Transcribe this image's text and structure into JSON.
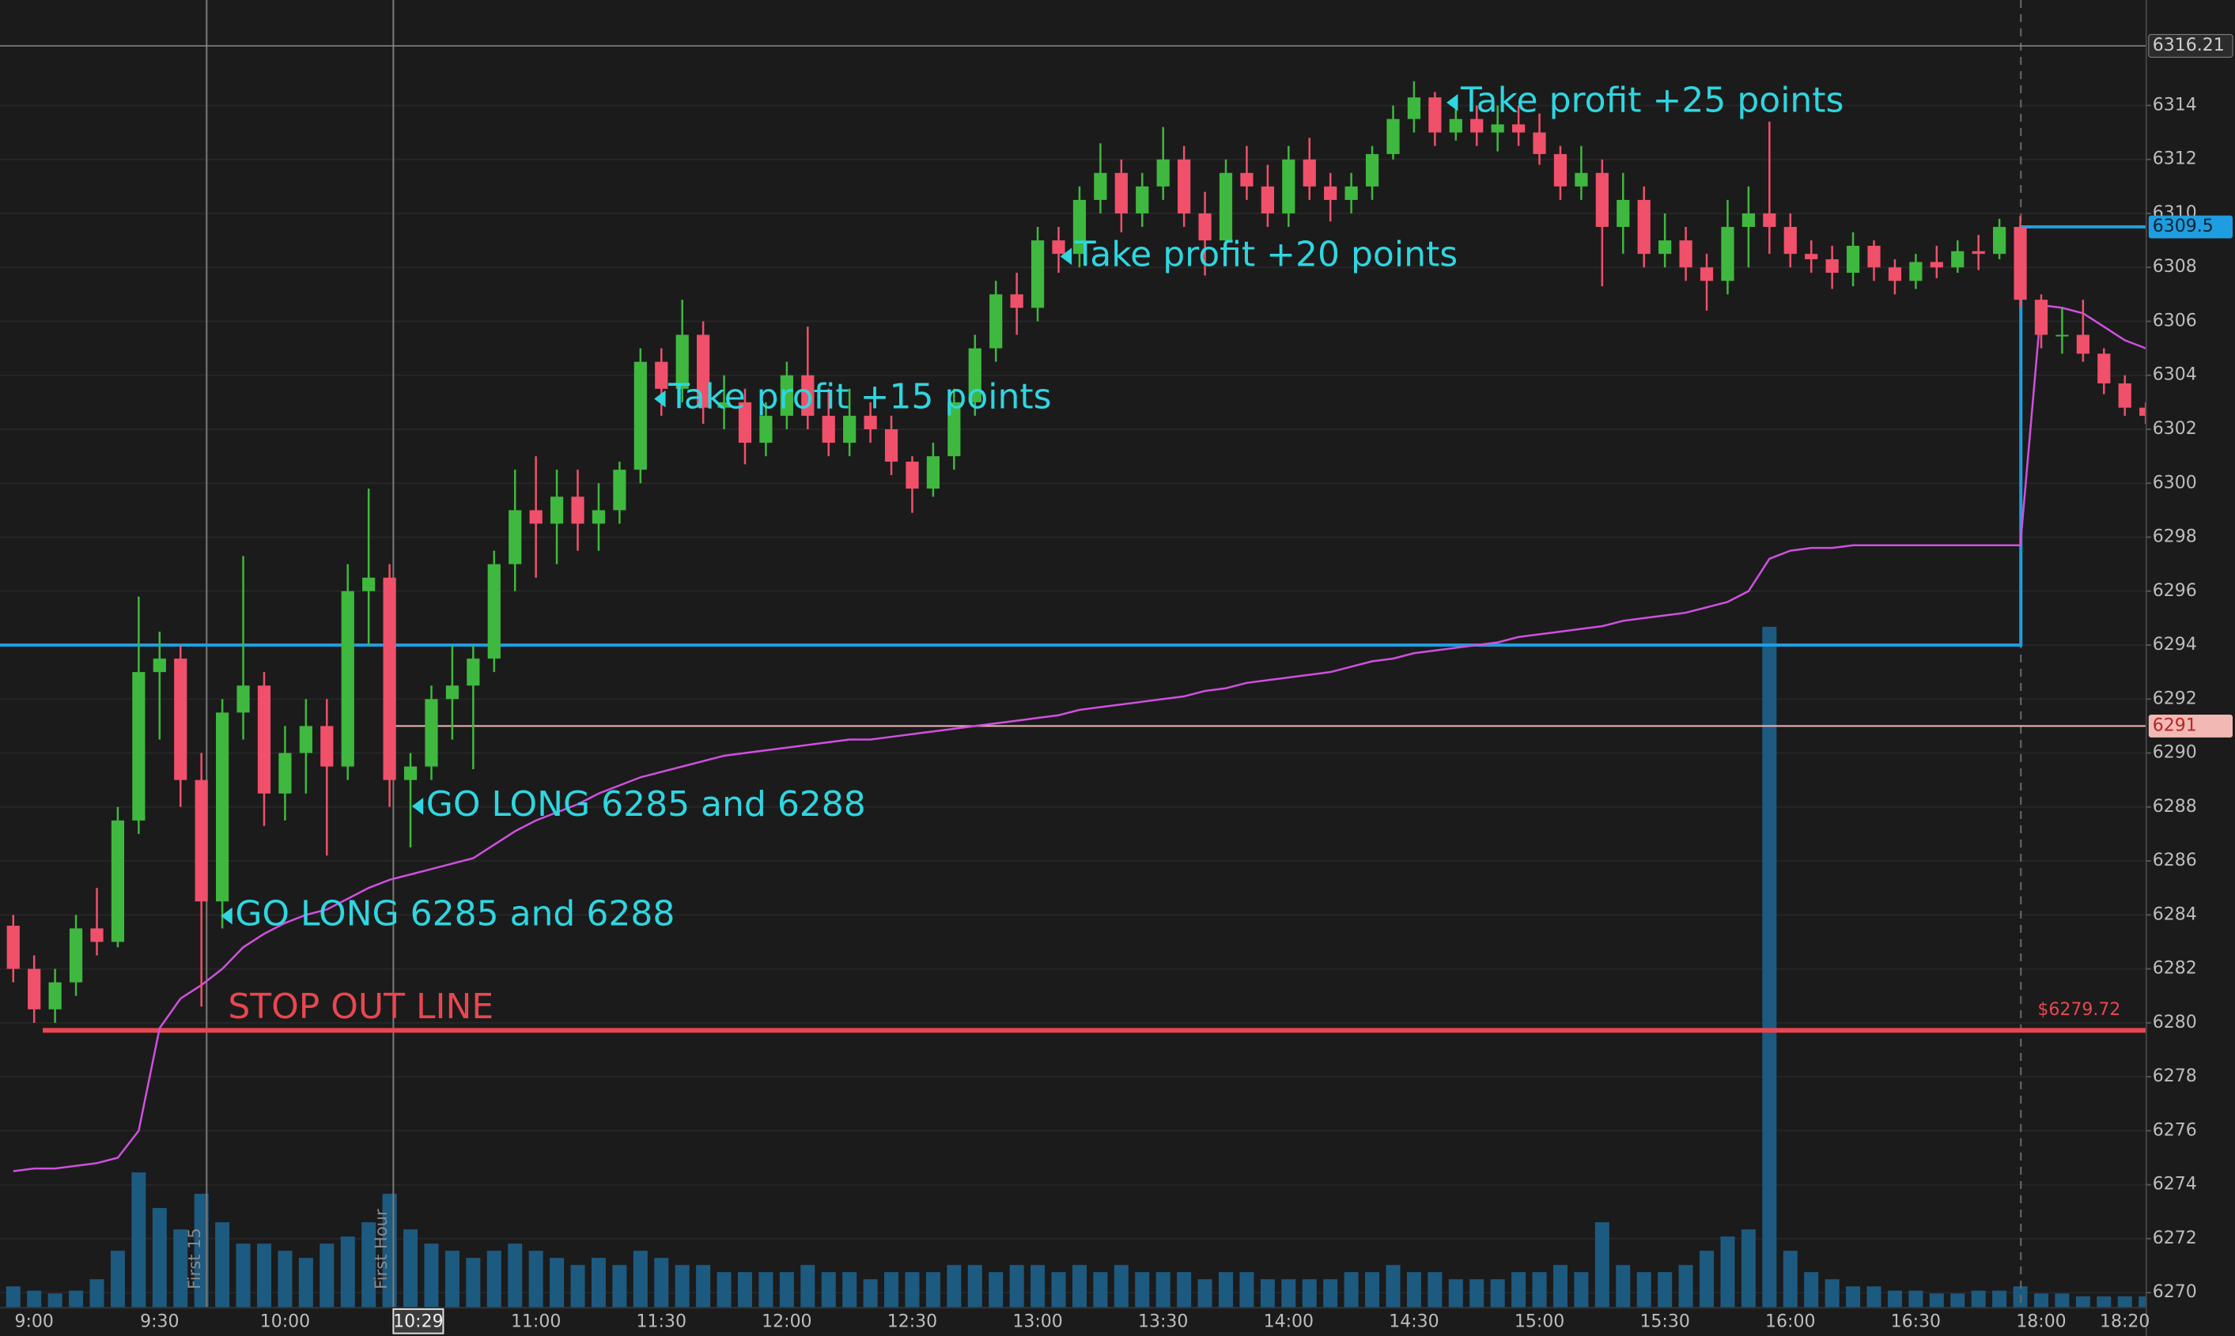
{
  "chart_data": {
    "type": "candlestick",
    "categories": [
      null,
      "9:00",
      null,
      null,
      null,
      null,
      null,
      "9:30",
      null,
      null,
      null,
      null,
      null,
      "10:00",
      null,
      null,
      null,
      null,
      null,
      null,
      null,
      null,
      null,
      null,
      null,
      "11:00",
      null,
      null,
      null,
      null,
      null,
      "11:30",
      null,
      null,
      null,
      null,
      null,
      "12:00",
      null,
      null,
      null,
      null,
      null,
      "12:30",
      null,
      null,
      null,
      null,
      null,
      "13:00",
      null,
      null,
      null,
      null,
      null,
      "13:30",
      null,
      null,
      null,
      null,
      null,
      "14:00",
      null,
      null,
      null,
      null,
      null,
      "14:30",
      null,
      null,
      null,
      null,
      null,
      "15:00",
      null,
      null,
      null,
      null,
      null,
      "15:30",
      null,
      null,
      null,
      null,
      null,
      "16:00",
      null,
      null,
      null,
      null,
      null,
      "16:30",
      null,
      null,
      null,
      null,
      null,
      "18:00",
      null,
      null,
      null,
      "18:20",
      null
    ],
    "ohlc": [
      [
        6283.6,
        6284,
        6281.5,
        6282
      ],
      [
        6282,
        6282.5,
        6280,
        6280.5
      ],
      [
        6280.5,
        6282,
        6280,
        6281.5
      ],
      [
        6281.5,
        6284,
        6281,
        6283.5
      ],
      [
        6283.5,
        6285,
        6282.5,
        6283
      ],
      [
        6283,
        6288,
        6282.8,
        6287.5
      ],
      [
        6287.5,
        6295.8,
        6287,
        6293
      ],
      [
        6293,
        6294.5,
        6290.5,
        6293.5
      ],
      [
        6293.5,
        6294,
        6288,
        6289
      ],
      [
        6289,
        6290,
        6280.6,
        6284.5
      ],
      [
        6284.5,
        6292,
        6283.5,
        6291.5
      ],
      [
        6291.5,
        6297.3,
        6290.5,
        6292.5
      ],
      [
        6292.5,
        6293,
        6287.3,
        6288.5
      ],
      [
        6288.5,
        6291,
        6287.5,
        6290
      ],
      [
        6290,
        6292,
        6288.5,
        6291
      ],
      [
        6291,
        6292,
        6286.2,
        6289.5
      ],
      [
        6289.5,
        6297,
        6289,
        6296
      ],
      [
        6296,
        6299.8,
        6294,
        6296.5
      ],
      [
        6296.5,
        6297,
        6288,
        6289
      ],
      [
        6289,
        6290,
        6286.5,
        6289.5
      ],
      [
        6289.5,
        6292.5,
        6289,
        6292
      ],
      [
        6292,
        6294,
        6290.5,
        6292.5
      ],
      [
        6292.5,
        6294,
        6289.4,
        6293.5
      ],
      [
        6293.5,
        6297.5,
        6293,
        6297
      ],
      [
        6297,
        6300.5,
        6296,
        6299
      ],
      [
        6299,
        6301,
        6296.5,
        6298.5
      ],
      [
        6298.5,
        6300.5,
        6297,
        6299.5
      ],
      [
        6299.5,
        6300.5,
        6297.5,
        6298.5
      ],
      [
        6298.5,
        6300,
        6297.5,
        6299
      ],
      [
        6299,
        6300.8,
        6298.5,
        6300.5
      ],
      [
        6300.5,
        6305,
        6300,
        6304.5
      ],
      [
        6304.5,
        6305,
        6302.5,
        6303.5
      ],
      [
        6303.5,
        6306.8,
        6303,
        6305.5
      ],
      [
        6305.5,
        6306,
        6302.2,
        6302.8
      ],
      [
        6302.8,
        6304,
        6302,
        6303
      ],
      [
        6303,
        6303.5,
        6300.7,
        6301.5
      ],
      [
        6301.5,
        6303,
        6301,
        6302.5
      ],
      [
        6302.5,
        6304.5,
        6302,
        6304
      ],
      [
        6304,
        6305.8,
        6302,
        6302.5
      ],
      [
        6302.5,
        6303.5,
        6301,
        6301.5
      ],
      [
        6301.5,
        6303.5,
        6301,
        6302.5
      ],
      [
        6302.5,
        6303,
        6301.5,
        6302
      ],
      [
        6302,
        6302.5,
        6300.3,
        6300.8
      ],
      [
        6300.8,
        6301,
        6298.9,
        6299.8
      ],
      [
        6299.8,
        6301.5,
        6299.5,
        6301
      ],
      [
        6301,
        6303.5,
        6300.5,
        6303
      ],
      [
        6303,
        6305.5,
        6302.5,
        6305
      ],
      [
        6305,
        6307.5,
        6304.5,
        6307
      ],
      [
        6307,
        6307.8,
        6305.5,
        6306.5
      ],
      [
        6306.5,
        6309.5,
        6306,
        6309
      ],
      [
        6309,
        6309.5,
        6307.8,
        6308.5
      ],
      [
        6308.5,
        6311,
        6308,
        6310.5
      ],
      [
        6310.5,
        6312.6,
        6310,
        6311.5
      ],
      [
        6311.5,
        6312,
        6309.3,
        6310
      ],
      [
        6310,
        6311.5,
        6309.5,
        6311
      ],
      [
        6311,
        6313.2,
        6310.5,
        6312
      ],
      [
        6312,
        6312.5,
        6309.5,
        6310
      ],
      [
        6310,
        6310.8,
        6307.7,
        6309
      ],
      [
        6309,
        6312,
        6308.5,
        6311.5
      ],
      [
        6311.5,
        6312.5,
        6310.5,
        6311
      ],
      [
        6311,
        6311.8,
        6309.5,
        6310
      ],
      [
        6310,
        6312.5,
        6309.5,
        6312
      ],
      [
        6312,
        6312.8,
        6310.5,
        6311
      ],
      [
        6311,
        6311.5,
        6309.7,
        6310.5
      ],
      [
        6310.5,
        6311.5,
        6310,
        6311
      ],
      [
        6311,
        6312.5,
        6310.5,
        6312.2
      ],
      [
        6312.2,
        6314,
        6312,
        6313.5
      ],
      [
        6313.5,
        6314.9,
        6313,
        6314.3
      ],
      [
        6314.3,
        6314.5,
        6312.5,
        6313
      ],
      [
        6313,
        6314,
        6312.7,
        6313.5
      ],
      [
        6313.5,
        6314,
        6312.5,
        6313
      ],
      [
        6313,
        6314,
        6312.3,
        6313.3
      ],
      [
        6313.3,
        6314,
        6312.5,
        6313
      ],
      [
        6313,
        6313.7,
        6311.8,
        6312.2
      ],
      [
        6312.2,
        6312.5,
        6310.5,
        6311
      ],
      [
        6311,
        6312.5,
        6310.5,
        6311.5
      ],
      [
        6311.5,
        6312,
        6307.3,
        6309.5
      ],
      [
        6309.5,
        6311.5,
        6308.5,
        6310.5
      ],
      [
        6310.5,
        6311,
        6308,
        6308.5
      ],
      [
        6308.5,
        6310,
        6308,
        6309
      ],
      [
        6309,
        6309.5,
        6307.5,
        6308
      ],
      [
        6308,
        6308.5,
        6306.4,
        6307.5
      ],
      [
        6307.5,
        6310.5,
        6307,
        6309.5
      ],
      [
        6309.5,
        6311,
        6308,
        6310
      ],
      [
        6310,
        6313.4,
        6308.5,
        6309.5
      ],
      [
        6309.5,
        6310,
        6308,
        6308.5
      ],
      [
        6308.5,
        6309,
        6307.8,
        6308.3
      ],
      [
        6308.3,
        6308.8,
        6307.2,
        6307.8
      ],
      [
        6307.8,
        6309.3,
        6307.3,
        6308.8
      ],
      [
        6308.8,
        6309,
        6307.5,
        6308
      ],
      [
        6308,
        6308.3,
        6307,
        6307.5
      ],
      [
        6307.5,
        6308.5,
        6307.2,
        6308.2
      ],
      [
        6308.2,
        6308.8,
        6307.6,
        6308
      ],
      [
        6308,
        6309,
        6307.8,
        6308.6
      ],
      [
        6308.6,
        6309.2,
        6307.9,
        6308.5
      ],
      [
        6308.5,
        6309.8,
        6308.3,
        6309.5
      ],
      [
        6309.5,
        6309.9,
        6306.5,
        6306.8
      ],
      [
        6306.8,
        6307,
        6305,
        6305.5
      ],
      [
        6305.5,
        6306.5,
        6304.8,
        6305.5
      ],
      [
        6305.5,
        6306.8,
        6304.5,
        6304.8
      ],
      [
        6304.8,
        6305,
        6303.3,
        6303.7
      ],
      [
        6303.7,
        6304,
        6302.5,
        6302.8
      ],
      [
        6302.8,
        6303,
        6302.2,
        6302.5
      ]
    ],
    "volume": [
      15,
      12,
      10,
      12,
      20,
      40,
      95,
      70,
      55,
      80,
      60,
      45,
      45,
      40,
      35,
      45,
      50,
      60,
      80,
      55,
      45,
      40,
      35,
      40,
      45,
      40,
      35,
      30,
      35,
      30,
      40,
      35,
      30,
      30,
      25,
      25,
      25,
      25,
      30,
      25,
      25,
      20,
      25,
      25,
      25,
      30,
      30,
      25,
      30,
      30,
      25,
      30,
      25,
      30,
      25,
      25,
      25,
      20,
      25,
      25,
      20,
      20,
      20,
      20,
      25,
      25,
      30,
      25,
      25,
      20,
      20,
      20,
      25,
      25,
      30,
      25,
      60,
      30,
      25,
      25,
      30,
      40,
      50,
      55,
      478,
      40,
      25,
      20,
      15,
      15,
      12,
      12,
      10,
      10,
      12,
      12,
      15,
      10,
      10,
      8,
      8,
      8,
      8
    ],
    "vwap": [
      6274.5,
      6274.6,
      6274.6,
      6274.7,
      6274.8,
      6275.0,
      6276.0,
      6279.8,
      6280.9,
      6281.4,
      6282.0,
      6282.8,
      6283.3,
      6283.7,
      6284.0,
      6284.2,
      6284.6,
      6285.0,
      6285.3,
      6285.5,
      6285.7,
      6285.9,
      6286.1,
      6286.6,
      6287.1,
      6287.5,
      6287.8,
      6288.1,
      6288.5,
      6288.8,
      6289.1,
      6289.3,
      6289.5,
      6289.7,
      6289.9,
      6290.0,
      6290.1,
      6290.2,
      6290.3,
      6290.4,
      6290.5,
      6290.5,
      6290.6,
      6290.7,
      6290.8,
      6290.9,
      6291.0,
      6291.1,
      6291.2,
      6291.3,
      6291.4,
      6291.6,
      6291.7,
      6291.8,
      6291.9,
      6292.0,
      6292.1,
      6292.3,
      6292.4,
      6292.6,
      6292.7,
      6292.8,
      6292.9,
      6293.0,
      6293.2,
      6293.4,
      6293.5,
      6293.7,
      6293.8,
      6293.9,
      6294.0,
      6294.1,
      6294.3,
      6294.4,
      6294.5,
      6294.6,
      6294.7,
      6294.9,
      6295.0,
      6295.1,
      6295.2,
      6295.4,
      6295.6,
      6296.0,
      6297.2,
      6297.5,
      6297.6,
      6297.6,
      6297.7,
      6297.7,
      6297.7,
      6297.7,
      6297.7,
      6297.7,
      6297.7,
      6297.7,
      6297.7,
      6306.6,
      6306.5,
      6306.3,
      6305.8,
      6305.3,
      6305.0
    ],
    "up_color": "#3fb83f",
    "down_color": "#f0506a",
    "volume_color": "#1d5a80",
    "vwap_color": "#d050e0",
    "ylim": [
      6269.44,
      6317.91
    ],
    "yticks": [
      6270,
      6272,
      6274,
      6276,
      6278,
      6280,
      6282,
      6284,
      6286,
      6288,
      6290,
      6292,
      6294,
      6296,
      6298,
      6300,
      6302,
      6304,
      6306,
      6308,
      6310,
      6312,
      6314
    ],
    "grid": true,
    "levels": [
      {
        "value": 6316.21,
        "label": "6316.21",
        "color": "#8a8a8a"
      },
      {
        "value": 6309.5,
        "label": "6309.5",
        "color": "#1e9ee0",
        "from": 6294
      },
      {
        "value": 6291,
        "label": "6291",
        "color": "#f2b8b4"
      },
      {
        "value": 6279.72,
        "label": "$6279.72",
        "color": "#e8474f"
      }
    ],
    "annotations": [
      {
        "text": "GO LONG 6285 and 6288",
        "color": "#2fd6e0"
      },
      {
        "text": "GO LONG 6285 and 6288",
        "color": "#2fd6e0"
      },
      {
        "text": "Take profit +15 points",
        "color": "#2fd6e0"
      },
      {
        "text": "Take profit +20 points",
        "color": "#2fd6e0"
      },
      {
        "text": "Take profit +25 points",
        "color": "#2fd6e0"
      },
      {
        "text": "STOP OUT LINE",
        "color": "#e8474f"
      }
    ],
    "markers": [
      {
        "label": "First 15"
      },
      {
        "label": "First Hour"
      }
    ],
    "crosshair_time": "10:29"
  }
}
